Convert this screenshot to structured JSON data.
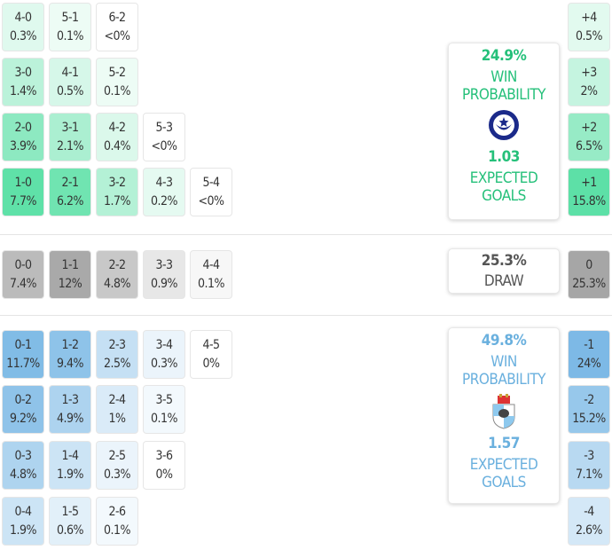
{
  "colors": {
    "home": "#25c07a",
    "away": "#6ab0de",
    "draw": "#555555"
  },
  "home": {
    "rows": [
      [
        [
          "4-0",
          "0.3%"
        ],
        [
          "5-1",
          "0.1%"
        ],
        [
          "6-2",
          "<0%"
        ]
      ],
      [
        [
          "3-0",
          "1.4%"
        ],
        [
          "4-1",
          "0.5%"
        ],
        [
          "5-2",
          "0.1%"
        ]
      ],
      [
        [
          "2-0",
          "3.9%"
        ],
        [
          "3-1",
          "2.1%"
        ],
        [
          "4-2",
          "0.4%"
        ],
        [
          "5-3",
          "<0%"
        ]
      ],
      [
        [
          "1-0",
          "7.7%"
        ],
        [
          "2-1",
          "6.2%"
        ],
        [
          "3-2",
          "1.7%"
        ],
        [
          "4-3",
          "0.2%"
        ],
        [
          "5-4",
          "<0%"
        ]
      ]
    ],
    "margins": [
      [
        "+4",
        "0.5%"
      ],
      [
        "+3",
        "2%"
      ],
      [
        "+2",
        "6.5%"
      ],
      [
        "+1",
        "15.8%"
      ]
    ],
    "win_pct": "24.9%",
    "win_label": "WIN PROBABILITY",
    "xg": "1.03",
    "xg_label": "EXPECTED GOALS",
    "crest_icon": "portsmouth-crest"
  },
  "draw": {
    "cells": [
      [
        "0-0",
        "7.4%"
      ],
      [
        "1-1",
        "12%"
      ],
      [
        "2-2",
        "4.8%"
      ],
      [
        "3-3",
        "0.9%"
      ],
      [
        "4-4",
        "0.1%"
      ]
    ],
    "margin": [
      "0",
      "25.3%"
    ],
    "pct": "25.3%",
    "label": "DRAW"
  },
  "away": {
    "rows": [
      [
        [
          "0-1",
          "11.7%"
        ],
        [
          "1-2",
          "9.4%"
        ],
        [
          "2-3",
          "2.5%"
        ],
        [
          "3-4",
          "0.3%"
        ],
        [
          "4-5",
          "0%"
        ]
      ],
      [
        [
          "0-2",
          "9.2%"
        ],
        [
          "1-3",
          "4.9%"
        ],
        [
          "2-4",
          "1%"
        ],
        [
          "3-5",
          "0.1%"
        ]
      ],
      [
        [
          "0-3",
          "4.8%"
        ],
        [
          "1-4",
          "1.9%"
        ],
        [
          "2-5",
          "0.3%"
        ],
        [
          "3-6",
          "0%"
        ]
      ],
      [
        [
          "0-4",
          "1.9%"
        ],
        [
          "1-5",
          "0.6%"
        ],
        [
          "2-6",
          "0.1%"
        ]
      ]
    ],
    "margins": [
      [
        "-1",
        "24%"
      ],
      [
        "-2",
        "15.2%"
      ],
      [
        "-3",
        "7.1%"
      ],
      [
        "-4",
        "2.6%"
      ]
    ],
    "win_pct": "49.8%",
    "win_label": "WIN PROBABILITY",
    "xg": "1.57",
    "xg_label": "EXPECTED GOALS",
    "crest_icon": "coventry-crest"
  }
}
